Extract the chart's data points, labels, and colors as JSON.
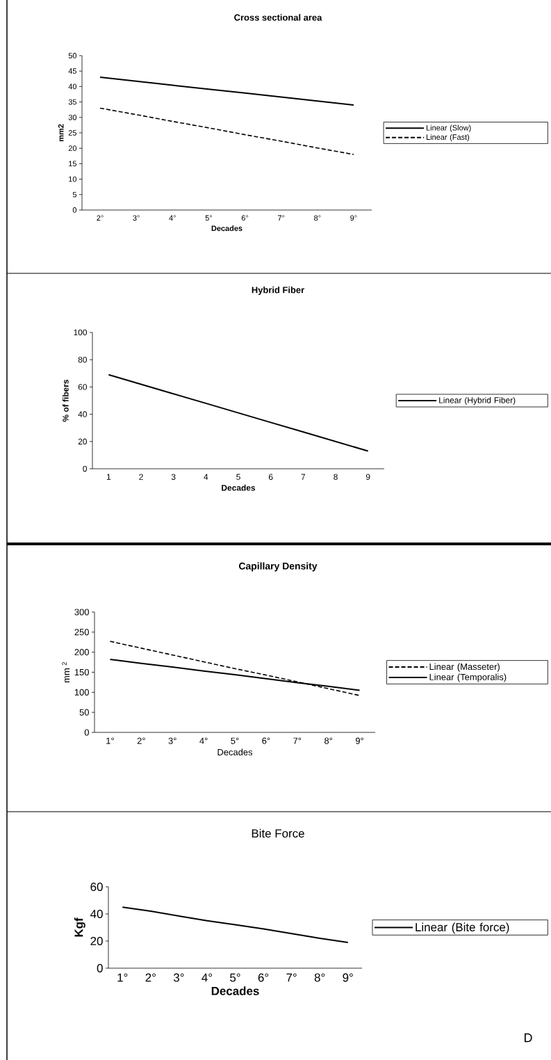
{
  "chart_data": [
    {
      "type": "line",
      "title": "Cross sectional area",
      "xlabel": "Decades",
      "ylabel": "mm2",
      "categories": [
        "2°",
        "3°",
        "4°",
        "5°",
        "6°",
        "7°",
        "8°",
        "9°"
      ],
      "ylim": [
        0,
        50
      ],
      "yticks": [
        0,
        5,
        10,
        15,
        20,
        25,
        30,
        35,
        40,
        45,
        50
      ],
      "legend": "right",
      "marker": "none",
      "series": [
        {
          "name": "Linear (Slow)",
          "color": "#000000",
          "line_style": "solid",
          "values": [
            43,
            41.7,
            40.4,
            39.1,
            37.9,
            36.6,
            35.3,
            34
          ]
        },
        {
          "name": "Linear (Fast)",
          "color": "#000000",
          "line_style": "dashed",
          "values": [
            33,
            30.9,
            28.7,
            26.6,
            24.4,
            22.3,
            20.1,
            18
          ]
        }
      ]
    },
    {
      "type": "line",
      "title": "Hybrid Fiber",
      "xlabel": "Decades",
      "ylabel": "% of fibers",
      "categories": [
        "1",
        "2",
        "3",
        "4",
        "5",
        "6",
        "7",
        "8",
        "9"
      ],
      "ylim": [
        0,
        100
      ],
      "yticks": [
        0,
        20,
        40,
        60,
        80,
        100
      ],
      "legend": "right",
      "marker": "none",
      "series": [
        {
          "name": "Linear (Hybrid Fiber)",
          "color": "#000000",
          "line_style": "solid",
          "values": [
            69,
            62,
            55,
            48,
            41,
            34,
            27,
            20,
            13
          ]
        }
      ]
    },
    {
      "type": "line",
      "title": "Capillary Density",
      "xlabel": "Decades",
      "ylabel": "mm $^{2}$",
      "categories": [
        "1°",
        "2°",
        "3°",
        "4°",
        "5°",
        "6°",
        "7°",
        "8°",
        "9°"
      ],
      "ylim": [
        0,
        300
      ],
      "yticks": [
        0,
        50,
        100,
        150,
        200,
        250,
        300
      ],
      "legend": "right",
      "marker": "none",
      "series": [
        {
          "name": "Linear (Masseter)",
          "color": "#000000",
          "line_style": "dashed",
          "values": [
            227,
            210,
            193,
            176,
            159,
            143,
            126,
            109,
            92
          ]
        },
        {
          "name": "Linear (Temporalis)",
          "color": "#000000",
          "line_style": "solid",
          "values": [
            182,
            172,
            163,
            153,
            144,
            134,
            124,
            115,
            105
          ]
        }
      ]
    },
    {
      "type": "line",
      "title": "Bite Force",
      "xlabel": "Decades",
      "ylabel": "Kgf",
      "categories": [
        "1°",
        "2°",
        "3°",
        "4°",
        "5°",
        "6°",
        "7°",
        "8°",
        "9°"
      ],
      "ylim": [
        0,
        60
      ],
      "yticks": [
        0,
        20,
        40,
        60
      ],
      "legend": "right",
      "marker": "none",
      "annotations": [
        "D"
      ],
      "series": [
        {
          "name": "Linear (Bite force)",
          "color": "#000000",
          "line_style": "solid",
          "values": [
            45,
            42,
            38.5,
            35,
            32,
            29,
            25.5,
            22,
            19
          ]
        }
      ]
    }
  ]
}
